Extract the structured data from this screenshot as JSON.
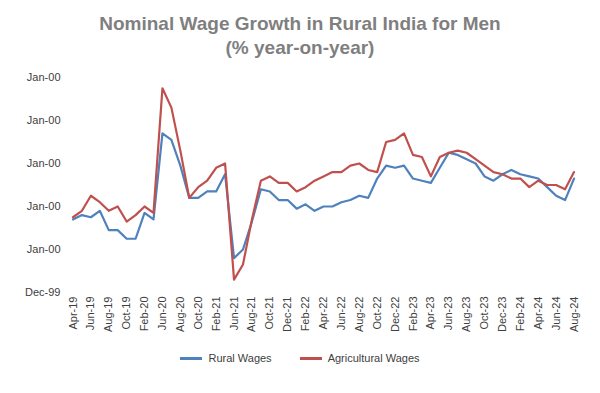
{
  "chart_data": {
    "type": "line",
    "title": "Nominal Wage Growth in Rural India for Men",
    "subtitle": "(% year-on-year)",
    "categories": [
      "Apr-19",
      null,
      "Jun-19",
      null,
      "Aug-19",
      null,
      "Oct-19",
      null,
      "Feb-20",
      null,
      "Jun-20",
      null,
      "Aug-20",
      null,
      "Oct-20",
      null,
      "Feb-21",
      null,
      "Jun-21",
      null,
      "Aug-21",
      null,
      "Oct-21",
      null,
      "Dec-21",
      null,
      "Feb-22",
      null,
      "Apr-22",
      null,
      "Jun-22",
      null,
      "Aug-22",
      null,
      "Oct-22",
      null,
      "Dec-22",
      null,
      "Feb-23",
      null,
      "Apr-23",
      null,
      "Jun-23",
      null,
      "Aug-23",
      null,
      "Oct-23",
      null,
      "Dec-23",
      null,
      "Feb-24",
      null,
      "Apr-24",
      null,
      "Jun-24",
      null,
      "Aug-24"
    ],
    "series": [
      {
        "name": "Rural Wages",
        "color": "#4f81bd",
        "values": [
          3.4,
          3.6,
          3.5,
          3.8,
          2.9,
          2.9,
          2.5,
          2.5,
          3.7,
          3.4,
          7.4,
          7.1,
          5.9,
          4.4,
          4.4,
          4.7,
          4.7,
          5.5,
          1.6,
          2.0,
          3.3,
          4.8,
          4.7,
          4.3,
          4.3,
          3.9,
          4.1,
          3.8,
          4.0,
          4.0,
          4.2,
          4.3,
          4.5,
          4.4,
          5.3,
          5.9,
          5.8,
          5.9,
          5.3,
          5.2,
          5.1,
          5.8,
          6.5,
          6.4,
          6.2,
          6.0,
          5.4,
          5.2,
          5.5,
          5.7,
          5.5,
          5.4,
          5.3,
          4.9,
          4.5,
          4.3,
          5.3
        ]
      },
      {
        "name": "Agricultural Wages",
        "color": "#c0504d",
        "values": [
          3.5,
          3.8,
          4.5,
          4.2,
          3.8,
          4.0,
          3.3,
          3.6,
          4.0,
          3.7,
          9.5,
          8.6,
          6.6,
          4.4,
          4.9,
          5.2,
          5.8,
          6.0,
          0.6,
          1.3,
          3.4,
          5.2,
          5.4,
          5.1,
          5.1,
          4.7,
          4.9,
          5.2,
          5.4,
          5.6,
          5.6,
          5.9,
          6.0,
          5.7,
          5.6,
          7.0,
          7.1,
          7.4,
          6.4,
          6.3,
          5.4,
          6.3,
          6.5,
          6.6,
          6.5,
          6.2,
          5.9,
          5.6,
          5.5,
          5.3,
          5.3,
          4.9,
          5.2,
          5.0,
          5.0,
          4.8,
          5.6
        ]
      }
    ],
    "ylim": [
      0,
      10
    ],
    "yticks": [
      {
        "value": 0,
        "label": "Dec-99"
      },
      {
        "value": 2,
        "label": "Jan-00"
      },
      {
        "value": 4,
        "label": "Jan-00"
      },
      {
        "value": 6,
        "label": "Jan-00"
      },
      {
        "value": 8,
        "label": "Jan-00"
      },
      {
        "value": 10,
        "label": "Jan-00"
      }
    ],
    "grid": false,
    "legend": "bottom"
  }
}
